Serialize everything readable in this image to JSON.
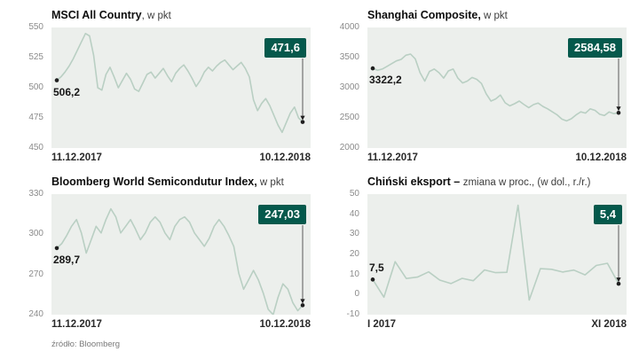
{
  "footer": {
    "source_label": "źródło: Bloomberg"
  },
  "colors": {
    "badge_bg": "#05594c",
    "line": "#b9cfc3",
    "plot_bg": "#ecefec",
    "dot": "#1f1f1f",
    "connector": "#5a5a5a",
    "tick_text": "#8b8b8b"
  },
  "chart_data": [
    {
      "type": "line",
      "title": "MSCI All Country",
      "title_suffix": ", w pkt",
      "start_label": "506,2",
      "end_label": "471,6",
      "x_start": "11.12.2017",
      "x_end": "10.12.2018",
      "ylim": [
        450,
        550
      ],
      "yticks": [
        550,
        525,
        500,
        475,
        450
      ],
      "grid": false,
      "values": [
        506.2,
        509,
        513,
        518,
        524,
        531,
        538,
        545,
        543,
        527,
        500,
        498,
        511,
        517,
        509,
        500,
        506,
        512,
        507,
        499,
        497,
        504,
        511,
        513,
        508,
        512,
        516,
        510,
        505,
        512,
        516,
        519,
        514,
        508,
        501,
        506,
        513,
        517,
        514,
        518,
        521,
        523,
        519,
        515,
        518,
        521,
        516,
        509,
        490,
        481,
        487,
        491,
        485,
        477,
        469,
        463,
        471,
        479,
        484,
        475,
        471.6
      ]
    },
    {
      "type": "line",
      "title": "Shanghai Composite,",
      "title_suffix": " w pkt",
      "start_label": "3322,2",
      "end_label": "2584,58",
      "x_start": "11.12.2017",
      "x_end": "10.12.2018",
      "ylim": [
        2000,
        4000
      ],
      "yticks": [
        4000,
        3500,
        3000,
        2500,
        2000
      ],
      "grid": false,
      "values": [
        3322.2,
        3290,
        3310,
        3355,
        3400,
        3445,
        3470,
        3540,
        3559,
        3480,
        3250,
        3110,
        3270,
        3310,
        3250,
        3160,
        3280,
        3310,
        3160,
        3080,
        3110,
        3170,
        3140,
        3070,
        2900,
        2780,
        2815,
        2880,
        2750,
        2700,
        2735,
        2780,
        2720,
        2670,
        2720,
        2745,
        2690,
        2650,
        2600,
        2550,
        2480,
        2450,
        2486,
        2550,
        2600,
        2580,
        2650,
        2625,
        2560,
        2540,
        2598,
        2570,
        2584.58
      ]
    },
    {
      "type": "line",
      "title": "Bloomberg World Semicondutur Index,",
      "title_suffix": " w pkt",
      "start_label": "289,7",
      "end_label": "247,03",
      "x_start": "11.12.2017",
      "x_end": "10.12.2018",
      "ylim": [
        240,
        330
      ],
      "yticks": [
        330,
        300,
        270,
        240
      ],
      "grid": false,
      "values": [
        289.7,
        293,
        299,
        306,
        311,
        301,
        286,
        296,
        306,
        301,
        311,
        319,
        313,
        301,
        306,
        311,
        304,
        296,
        301,
        309,
        313,
        309,
        301,
        296,
        306,
        311,
        313,
        309,
        301,
        296,
        291,
        297,
        306,
        311,
        306,
        299,
        291,
        271,
        259,
        266,
        273,
        266,
        256,
        244,
        240,
        253,
        263,
        259,
        249,
        243,
        247.03
      ]
    },
    {
      "type": "line",
      "title": "Chiński eksport – ",
      "title_suffix": "zmiana w proc., (w dol., r./r.)",
      "start_label": "7,5",
      "end_label": "5,4",
      "x_start": "I 2017",
      "x_end": "XI 2018",
      "ylim": [
        -10,
        50
      ],
      "yticks": [
        50,
        40,
        30,
        20,
        10,
        0,
        -10
      ],
      "grid": false,
      "values": [
        7.5,
        -1.3,
        16.4,
        8,
        8.7,
        11.3,
        7.2,
        5.5,
        8.1,
        6.9,
        12.3,
        10.9,
        11.1,
        44.5,
        -2.7,
        12.9,
        12.6,
        11.2,
        12.2,
        9.8,
        14.5,
        15.6,
        5.4
      ]
    }
  ]
}
